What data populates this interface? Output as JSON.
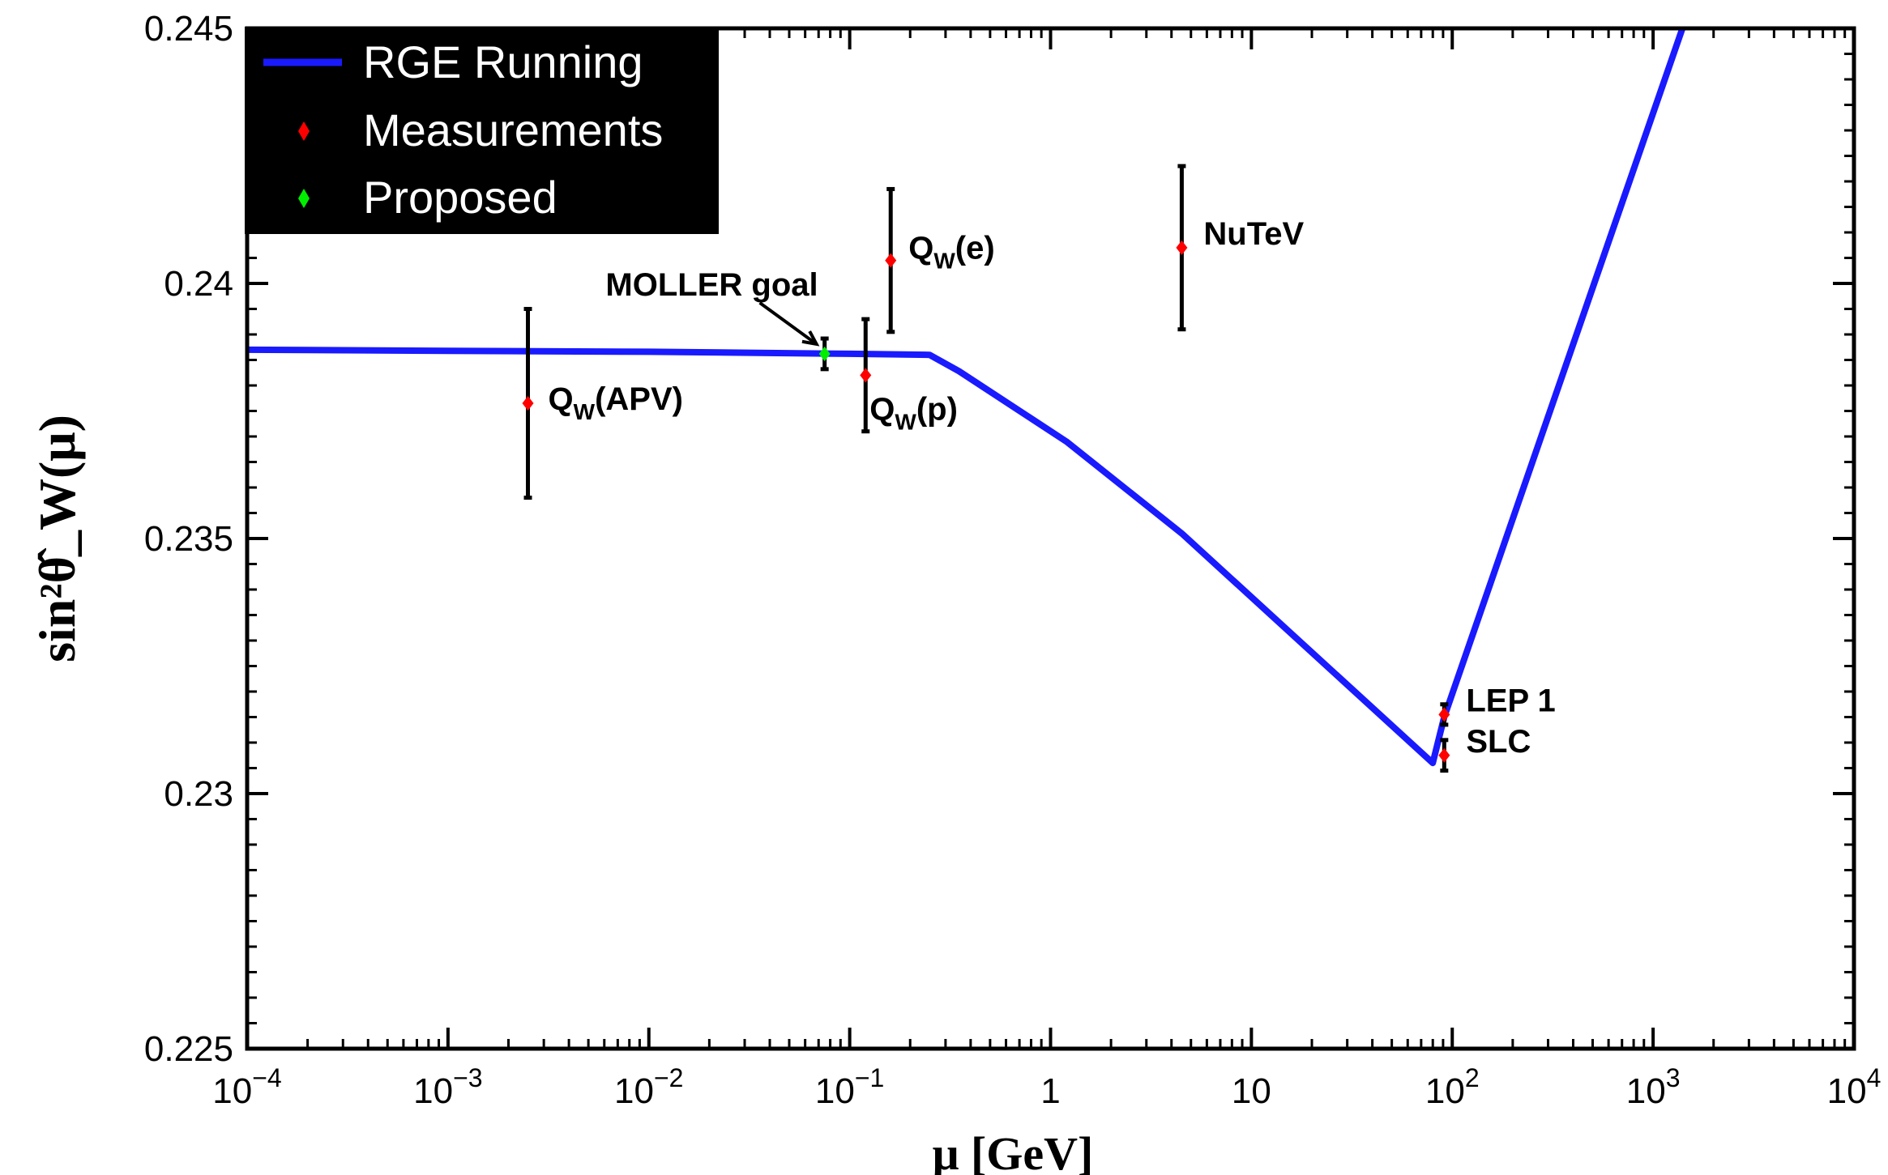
{
  "chart_data": {
    "type": "scatter",
    "title": "",
    "xlabel": "μ [GeV]",
    "ylabel": "sin²θ̂_W(μ)",
    "xscale": "log",
    "xlim": [
      0.0001,
      10000
    ],
    "ylim": [
      0.225,
      0.245
    ],
    "grid": false,
    "legend_position": "top-left",
    "x_ticks": [
      {
        "value": 0.0001,
        "base": "10",
        "exp": "−4"
      },
      {
        "value": 0.001,
        "base": "10",
        "exp": "−3"
      },
      {
        "value": 0.01,
        "base": "10",
        "exp": "−2"
      },
      {
        "value": 0.1,
        "base": "10",
        "exp": "−1"
      },
      {
        "value": 1,
        "base": "1",
        "exp": ""
      },
      {
        "value": 10,
        "base": "10",
        "exp": ""
      },
      {
        "value": 100,
        "base": "10",
        "exp": "2"
      },
      {
        "value": 1000,
        "base": "10",
        "exp": "3"
      },
      {
        "value": 10000,
        "base": "10",
        "exp": "4"
      }
    ],
    "y_ticks": [
      {
        "value": 0.225,
        "label": "0.225"
      },
      {
        "value": 0.23,
        "label": "0.23"
      },
      {
        "value": 0.235,
        "label": "0.235"
      },
      {
        "value": 0.24,
        "label": "0.24"
      },
      {
        "value": 0.245,
        "label": "0.245"
      }
    ],
    "legend": [
      {
        "name": "RGE Running",
        "symbol": "line",
        "color": "#1a1aff"
      },
      {
        "name": "Measurements",
        "symbol": "diamond",
        "color": "#ff0000"
      },
      {
        "name": "Proposed",
        "symbol": "diamond",
        "color": "#00ee00"
      }
    ],
    "rge_curve": {
      "name": "RGE Running",
      "color": "#1a1aff",
      "x": [
        0.0001,
        0.001,
        0.01,
        0.1,
        0.25,
        0.35,
        1.2,
        4.5,
        80,
        91.2,
        1400
      ],
      "y": [
        0.2387,
        0.23868,
        0.23866,
        0.23862,
        0.2386,
        0.23828,
        0.2369,
        0.2351,
        0.2306,
        0.2315,
        0.245
      ]
    },
    "measurements": [
      {
        "label_main": "Q",
        "label_sub": "W",
        "label_rest": "(APV)",
        "x": 0.0025,
        "y": 0.23765,
        "yerr_low": 0.00185,
        "yerr_high": 0.00185,
        "color": "#ff0000"
      },
      {
        "label_main": "Q",
        "label_sub": "W",
        "label_rest": "(p)",
        "x": 0.12,
        "y": 0.2382,
        "yerr_low": 0.0011,
        "yerr_high": 0.0011,
        "color": "#ff0000"
      },
      {
        "label_main": "Q",
        "label_sub": "W",
        "label_rest": "(e)",
        "x": 0.16,
        "y": 0.24045,
        "yerr_low": 0.0014,
        "yerr_high": 0.0014,
        "color": "#ff0000"
      },
      {
        "label_main": "NuTeV",
        "label_sub": "",
        "label_rest": "",
        "x": 4.5,
        "y": 0.2407,
        "yerr_low": 0.0016,
        "yerr_high": 0.0016,
        "color": "#ff0000"
      },
      {
        "label_main": "LEP 1",
        "label_sub": "",
        "label_rest": "",
        "x": 91.2,
        "y": 0.23155,
        "yerr_low": 0.0002,
        "yerr_high": 0.0002,
        "color": "#ff0000"
      },
      {
        "label_main": "SLC",
        "label_sub": "",
        "label_rest": "",
        "x": 91.2,
        "y": 0.23075,
        "yerr_low": 0.0003,
        "yerr_high": 0.0003,
        "color": "#ff0000"
      }
    ],
    "proposed": [
      {
        "label": "MOLLER goal",
        "x": 0.075,
        "y": 0.23862,
        "yerr_low": 0.0003,
        "yerr_high": 0.0003,
        "color": "#00ee00"
      }
    ]
  }
}
